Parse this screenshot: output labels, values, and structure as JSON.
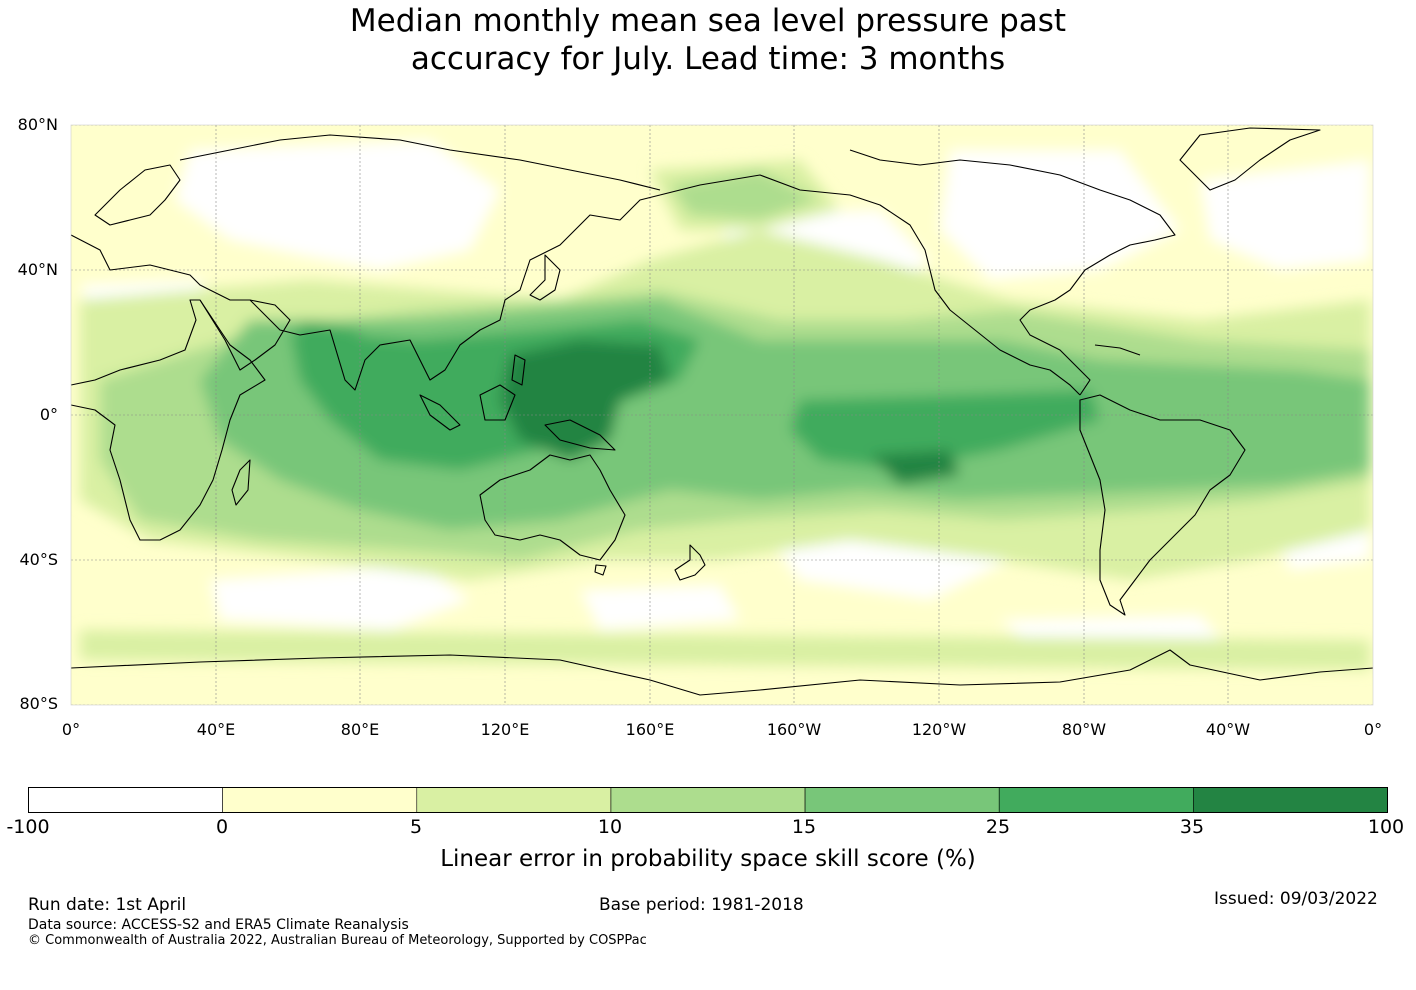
{
  "title": {
    "line1": "Median monthly mean sea level pressure past",
    "line2": "accuracy for July. Lead time: 3 months"
  },
  "map": {
    "lat_labels": [
      "80°N",
      "40°N",
      "0°",
      "40°S",
      "80°S"
    ],
    "lon_labels": [
      "0°",
      "40°E",
      "80°E",
      "120°E",
      "160°E",
      "160°W",
      "120°W",
      "80°W",
      "40°W",
      "0°"
    ],
    "lat_range": [
      -80,
      80
    ],
    "lon_range": [
      0,
      360
    ],
    "projection": "equirectangular",
    "grid": "dotted graticule every 40°",
    "field": "Linear error in probability space skill score",
    "regions_high_skill": [
      "Maritime Continent / western tropical Pacific",
      "tropical Indian Ocean",
      "eastern tropical Pacific",
      "tropical Atlantic"
    ],
    "regions_low_skill": [
      "mid-latitude continents",
      "Southern Ocean",
      "North Pacific"
    ]
  },
  "colorbar": {
    "ticks": [
      "-100",
      "0",
      "5",
      "10",
      "15",
      "25",
      "35",
      "100"
    ],
    "colors": [
      "#ffffff",
      "#ffffcc",
      "#d9f0a3",
      "#addd8e",
      "#78c679",
      "#41ab5d",
      "#238443"
    ],
    "caption": "Linear error in probability space skill score (%)"
  },
  "footer": {
    "run_date": "Run date: 1st April",
    "base_period": "Base period: 1981-2018",
    "issued": "Issued: 09/03/2022",
    "data_source": "Data source: ACCESS-S2 and ERA5 Climate Reanalysis",
    "copyright": "© Commonwealth of Australia 2022, Australian Bureau of Meteorology, Supported by COSPPac"
  }
}
